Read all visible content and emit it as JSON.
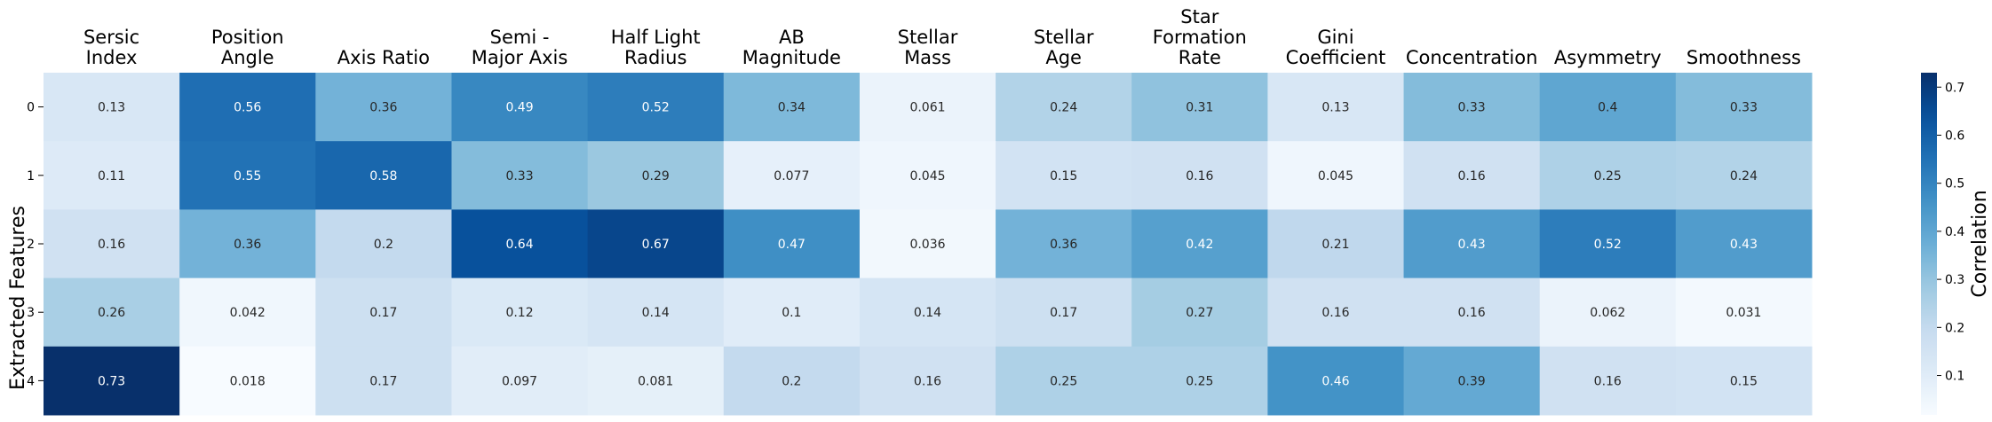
{
  "chart_data": {
    "type": "heatmap",
    "title": "",
    "ylabel": "Extracted Features",
    "colorbar_label": "Correlation",
    "colormap": "Blues",
    "value_range": [
      0.018,
      0.73
    ],
    "colorbar_ticks": [
      "0.1",
      "0.2",
      "0.3",
      "0.4",
      "0.5",
      "0.6",
      "0.7"
    ],
    "columns": [
      [
        "Sersic",
        "Index"
      ],
      [
        "Position",
        "Angle"
      ],
      [
        "Axis Ratio"
      ],
      [
        "Semi -",
        "Major Axis"
      ],
      [
        "Half Light",
        "Radius"
      ],
      [
        "AB",
        "Magnitude"
      ],
      [
        "Stellar",
        "Mass"
      ],
      [
        "Stellar",
        "Age"
      ],
      [
        "Star",
        "Formation",
        "Rate"
      ],
      [
        "Gini",
        "Coefficient"
      ],
      [
        "Concentration"
      ],
      [
        "Asymmetry"
      ],
      [
        "Smoothness"
      ]
    ],
    "rows": [
      "0",
      "1",
      "2",
      "3",
      "4"
    ],
    "values": [
      [
        0.13,
        0.56,
        0.36,
        0.49,
        0.52,
        0.34,
        0.061,
        0.24,
        0.31,
        0.13,
        0.33,
        0.4,
        0.33
      ],
      [
        0.11,
        0.55,
        0.58,
        0.33,
        0.29,
        0.077,
        0.045,
        0.15,
        0.16,
        0.045,
        0.16,
        0.25,
        0.24
      ],
      [
        0.16,
        0.36,
        0.2,
        0.64,
        0.67,
        0.47,
        0.036,
        0.36,
        0.42,
        0.21,
        0.43,
        0.52,
        0.43
      ],
      [
        0.26,
        0.042,
        0.17,
        0.12,
        0.14,
        0.1,
        0.14,
        0.17,
        0.27,
        0.16,
        0.16,
        0.062,
        0.031
      ],
      [
        0.73,
        0.018,
        0.17,
        0.097,
        0.081,
        0.2,
        0.16,
        0.25,
        0.25,
        0.46,
        0.39,
        0.16,
        0.15
      ]
    ],
    "labels": [
      [
        "0.13",
        "0.56",
        "0.36",
        "0.49",
        "0.52",
        "0.34",
        "0.061",
        "0.24",
        "0.31",
        "0.13",
        "0.33",
        "0.4",
        "0.33"
      ],
      [
        "0.11",
        "0.55",
        "0.58",
        "0.33",
        "0.29",
        "0.077",
        "0.045",
        "0.15",
        "0.16",
        "0.045",
        "0.16",
        "0.25",
        "0.24"
      ],
      [
        "0.16",
        "0.36",
        "0.2",
        "0.64",
        "0.67",
        "0.47",
        "0.036",
        "0.36",
        "0.42",
        "0.21",
        "0.43",
        "0.52",
        "0.43"
      ],
      [
        "0.26",
        "0.042",
        "0.17",
        "0.12",
        "0.14",
        "0.1",
        "0.14",
        "0.17",
        "0.27",
        "0.16",
        "0.16",
        "0.062",
        "0.031"
      ],
      [
        "0.73",
        "0.018",
        "0.17",
        "0.097",
        "0.081",
        "0.2",
        "0.16",
        "0.25",
        "0.25",
        "0.46",
        "0.39",
        "0.16",
        "0.15"
      ]
    ]
  }
}
